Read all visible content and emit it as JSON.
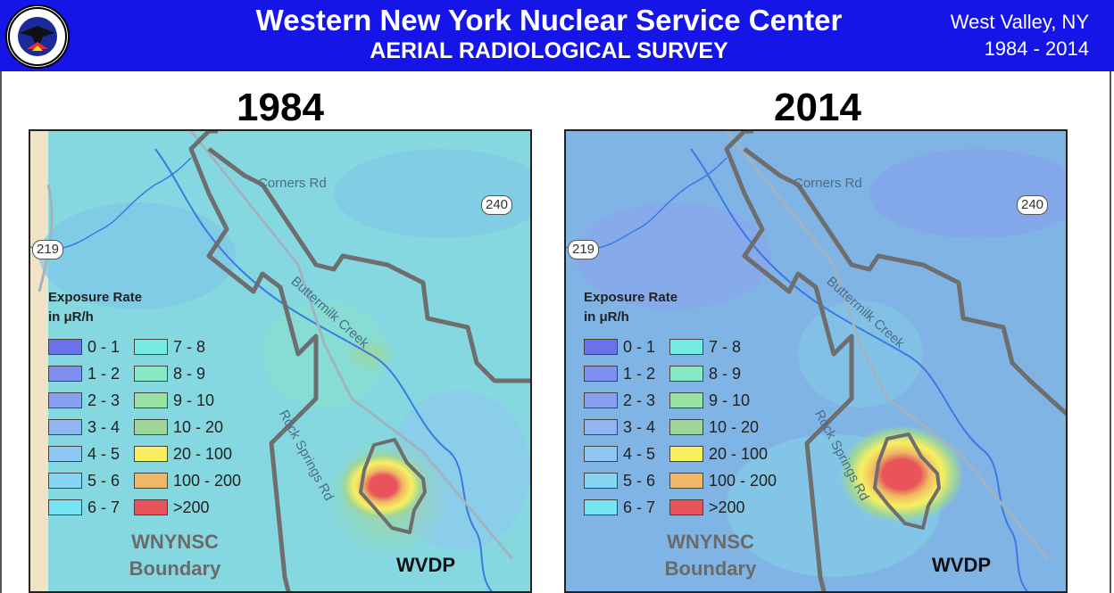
{
  "header": {
    "title": "Western New York Nuclear Service Center",
    "subtitle": "AERIAL RADIOLOGICAL SURVEY",
    "location": "West Valley, NY",
    "years": "1984 - 2014",
    "logo_icon": "aerial-measuring-system-seal",
    "background_color": "#1515e8"
  },
  "panels": [
    {
      "year": "1984",
      "road_labels": [
        "Corners Rd",
        "Buttermilk Creek",
        "Rock Springs Rd"
      ],
      "route_shields": [
        "240",
        "219"
      ],
      "boundary_label": [
        "WNYNSC",
        "Boundary"
      ],
      "site_label": "WVDP"
    },
    {
      "year": "2014",
      "road_labels": [
        "Corners Rd",
        "Buttermilk Creek",
        "Rock Springs Rd"
      ],
      "route_shields": [
        "240",
        "219"
      ],
      "boundary_label": [
        "WNYNSC",
        "Boundary"
      ],
      "site_label": "WVDP"
    }
  ],
  "legend": {
    "title_line1": "Exposure Rate",
    "title_line2": "in μR/h",
    "items": [
      {
        "label": "0 - 1",
        "color": "#6a72ea"
      },
      {
        "label": "1 - 2",
        "color": "#7d8ff0"
      },
      {
        "label": "2 - 3",
        "color": "#87a0f0"
      },
      {
        "label": "3 - 4",
        "color": "#8fb6f2"
      },
      {
        "label": "4 - 5",
        "color": "#8fc8f2"
      },
      {
        "label": "5 - 6",
        "color": "#84d6f4"
      },
      {
        "label": "6 - 7",
        "color": "#76e4f2"
      },
      {
        "label": "7 - 8",
        "color": "#76ece0"
      },
      {
        "label": "8 - 9",
        "color": "#86eac4"
      },
      {
        "label": "9 - 10",
        "color": "#98e2a4"
      },
      {
        "label": "10 - 20",
        "color": "#9ed69a"
      },
      {
        "label": "20 - 100",
        "color": "#f8f060"
      },
      {
        "label": "100 - 200",
        "color": "#eeb866"
      },
      {
        "label": ">200",
        "color": "#e8545a"
      }
    ]
  }
}
